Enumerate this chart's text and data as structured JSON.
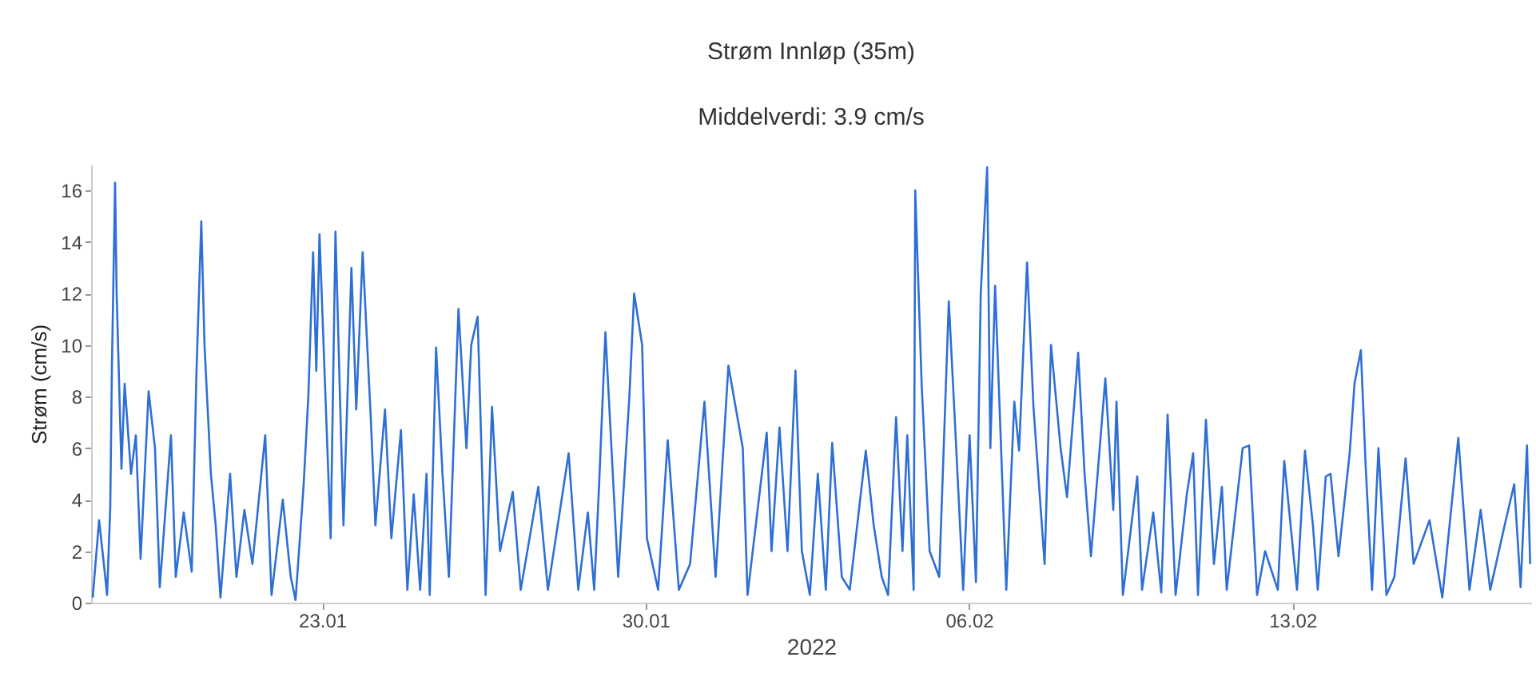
{
  "chart_data": {
    "type": "line",
    "title": "Strøm Innløp (35m)",
    "subtitle": "Middelverdi: 3.9 cm/s",
    "xlabel": "2022",
    "ylabel": "Strøm (cm/s)",
    "xlim": [
      "2022-01-18T00:00",
      "2022-02-18T04:00"
    ],
    "xticks": [
      {
        "value": "2022-01-23",
        "label": "23.01"
      },
      {
        "value": "2022-01-30",
        "label": "30.01"
      },
      {
        "value": "2022-02-06",
        "label": "06.02"
      },
      {
        "value": "2022-02-13",
        "label": "13.02"
      }
    ],
    "ylim": [
      0,
      17
    ],
    "yticks": [
      0,
      2,
      4,
      6,
      8,
      10,
      12,
      14,
      16
    ],
    "grid": false,
    "legend": false,
    "marker": "none",
    "line_style": "solid",
    "series": [
      {
        "color": "#2e6fd6",
        "x": [
          "2022-01-18T00:50",
          "2022-01-18T04:09",
          "2022-01-18T06:38",
          "2022-01-18T08:18",
          "2022-01-18T09:57",
          "2022-01-18T10:47",
          "2022-01-18T12:27",
          "2022-01-18T13:16",
          "2022-01-18T15:46",
          "2022-01-18T17:25",
          "2022-01-18T20:44",
          "2022-01-18T23:14",
          "2022-01-19T01:43",
          "2022-01-19T05:52",
          "2022-01-19T09:11",
          "2022-01-19T11:40",
          "2022-01-19T17:29",
          "2022-01-19T19:58",
          "2022-01-20T00:07",
          "2022-01-20T04:16",
          "2022-01-20T06:45",
          "2022-01-20T09:14",
          "2022-01-20T10:54",
          "2022-01-20T14:13",
          "2022-01-20T16:43",
          "2022-01-20T19:12",
          "2022-01-21T00:11",
          "2022-01-21T03:29",
          "2022-01-21T07:38",
          "2022-01-21T11:47",
          "2022-01-21T15:07",
          "2022-01-21T18:26",
          "2022-01-21T21:44",
          "2022-01-22T03:33",
          "2022-01-22T07:42",
          "2022-01-22T10:11",
          "2022-01-22T14:20",
          "2022-01-22T16:50",
          "2022-01-22T19:19",
          "2022-01-22T20:58",
          "2022-01-22T22:38",
          "2022-01-23T04:26",
          "2022-01-23T06:56",
          "2022-01-23T11:05",
          "2022-01-23T15:13",
          "2022-01-23T17:43",
          "2022-01-23T21:02",
          "2022-01-24T01:11",
          "2022-01-24T03:40",
          "2022-01-24T08:39",
          "2022-01-24T11:58",
          "2022-01-24T16:56",
          "2022-01-24T20:16",
          "2022-01-24T23:35",
          "2022-01-25T02:54",
          "2022-01-25T06:13",
          "2022-01-25T07:53",
          "2022-01-25T11:11",
          "2022-01-25T14:31",
          "2022-01-25T17:50",
          "2022-01-25T22:49",
          "2022-01-26T02:58",
          "2022-01-26T05:26",
          "2022-01-26T08:46",
          "2022-01-26T12:55",
          "2022-01-26T16:14",
          "2022-01-26T20:23",
          "2022-01-27T03:01",
          "2022-01-27T07:10",
          "2022-01-27T16:17",
          "2022-01-27T21:16",
          "2022-01-28T08:03",
          "2022-01-28T13:02",
          "2022-01-28T18:01",
          "2022-01-28T21:19",
          "2022-01-28T23:49",
          "2022-01-29T03:08",
          "2022-01-29T09:46",
          "2022-01-29T15:35",
          "2022-01-29T18:04",
          "2022-01-29T22:13",
          "2022-01-30T00:42",
          "2022-01-30T06:31",
          "2022-01-30T11:29",
          "2022-01-30T17:17",
          "2022-01-30T23:06",
          "2022-01-31T06:34",
          "2022-01-31T12:22",
          "2022-01-31T19:01",
          "2022-02-01T02:29",
          "2022-02-01T04:58",
          "2022-02-01T14:55",
          "2022-02-01T17:25",
          "2022-02-01T21:34",
          "2022-02-02T01:43",
          "2022-02-02T05:51",
          "2022-02-02T09:10",
          "2022-02-02T13:19",
          "2022-02-02T17:28",
          "2022-02-02T21:37",
          "2022-02-03T00:56",
          "2022-02-03T05:55",
          "2022-02-03T10:04",
          "2022-02-03T18:22",
          "2022-02-03T22:30",
          "2022-02-04T02:39",
          "2022-02-04T05:58",
          "2022-02-04T10:07",
          "2022-02-04T13:26",
          "2022-02-04T15:56",
          "2022-02-04T19:14",
          "2022-02-04T20:04",
          "2022-02-04T23:23",
          "2022-02-05T03:32",
          "2022-02-05T08:31",
          "2022-02-05T13:30",
          "2022-02-05T16:49",
          "2022-02-05T20:58",
          "2022-02-06T00:17",
          "2022-02-06T03:36",
          "2022-02-06T06:05",
          "2022-02-06T09:25",
          "2022-02-06T11:04",
          "2022-02-06T13:33",
          "2022-02-06T19:21",
          "2022-02-06T23:31",
          "2022-02-07T02:00",
          "2022-02-07T06:09",
          "2022-02-07T09:28",
          "2022-02-07T15:16",
          "2022-02-07T18:35",
          "2022-02-07T23:34",
          "2022-02-08T02:53",
          "2022-02-08T08:41",
          "2022-02-08T12:01",
          "2022-02-08T15:20",
          "2022-02-08T22:48",
          "2022-02-09T02:56",
          "2022-02-09T04:36",
          "2022-02-09T07:55",
          "2022-02-09T15:23",
          "2022-02-09T17:53",
          "2022-02-09T23:41",
          "2022-02-10T03:50",
          "2022-02-10T07:09",
          "2022-02-10T11:18",
          "2022-02-10T17:07",
          "2022-02-10T20:25",
          "2022-02-10T22:55",
          "2022-02-11T03:04",
          "2022-02-11T07:13",
          "2022-02-11T11:22",
          "2022-02-11T13:51",
          "2022-02-11T22:08",
          "2022-02-12T01:28",
          "2022-02-12T05:37",
          "2022-02-12T09:46",
          "2022-02-12T16:23",
          "2022-02-12T19:43",
          "2022-02-13T02:21",
          "2022-02-13T06:30",
          "2022-02-13T10:38",
          "2022-02-13T13:08",
          "2022-02-13T17:17",
          "2022-02-13T19:46",
          "2022-02-13T23:55",
          "2022-02-14T05:43",
          "2022-02-14T08:13",
          "2022-02-14T11:32",
          "2022-02-14T14:01",
          "2022-02-14T17:20",
          "2022-02-14T20:40",
          "2022-02-15T00:49",
          "2022-02-15T04:57",
          "2022-02-15T10:46",
          "2022-02-15T14:55",
          "2022-02-15T23:12",
          "2022-02-16T05:50",
          "2022-02-16T14:08",
          "2022-02-16T19:56",
          "2022-02-17T01:45",
          "2022-02-17T06:44",
          "2022-02-17T14:12",
          "2022-02-17T19:10",
          "2022-02-17T22:29",
          "2022-02-18T01:49",
          "2022-02-18T03:28"
        ],
        "values": [
          0.2,
          3.2,
          1.5,
          0.3,
          3.7,
          9,
          16.3,
          12,
          5.2,
          8.5,
          5,
          6.5,
          1.7,
          8.2,
          6,
          0.6,
          6.5,
          1,
          3.5,
          1.2,
          9,
          14.8,
          10,
          5,
          3,
          0.2,
          5,
          1,
          3.6,
          1.5,
          4,
          6.5,
          0.3,
          4,
          1,
          0.1,
          4.5,
          8,
          13.6,
          9,
          14.3,
          2.5,
          14.4,
          3,
          13,
          7.5,
          13.6,
          7.3,
          3,
          7.5,
          2.5,
          6.7,
          0.5,
          4.2,
          0.5,
          5,
          0.3,
          9.9,
          5,
          1,
          11.4,
          6,
          10,
          11.1,
          0.3,
          7.6,
          2,
          4.3,
          0.5,
          4.5,
          0.5,
          5.8,
          0.5,
          3.5,
          0.5,
          4.5,
          10.5,
          1,
          8,
          12,
          10,
          2.5,
          0.5,
          6.3,
          0.5,
          1.5,
          7.8,
          1,
          9.2,
          6,
          0.3,
          6.6,
          2,
          6.8,
          2,
          9,
          2,
          0.3,
          5,
          0.5,
          6.2,
          1,
          0.5,
          5.9,
          3,
          1,
          0.3,
          7.2,
          2,
          6.5,
          0.5,
          16,
          8.5,
          2,
          1,
          11.7,
          6.8,
          0.5,
          6.5,
          0.8,
          12,
          16.9,
          6,
          12.3,
          0.5,
          7.8,
          5.9,
          13.2,
          7.6,
          1.5,
          10,
          6,
          4.1,
          9.7,
          5,
          1.8,
          8.7,
          3.6,
          7.8,
          0.3,
          4.9,
          0.5,
          3.5,
          0.4,
          7.3,
          0.3,
          4.2,
          5.8,
          0.3,
          7.1,
          1.5,
          4.5,
          0.5,
          6,
          6.1,
          0.3,
          2,
          0.5,
          5.5,
          0.5,
          5.9,
          3,
          0.5,
          4.9,
          5,
          1.8,
          5.8,
          8.5,
          9.8,
          5.3,
          0.5,
          6,
          0.3,
          1,
          5.6,
          1.5,
          3.2,
          0.2,
          6.4,
          0.5,
          3.6,
          0.5,
          3,
          4.6,
          0.6,
          6.1,
          1.5
        ]
      }
    ]
  }
}
